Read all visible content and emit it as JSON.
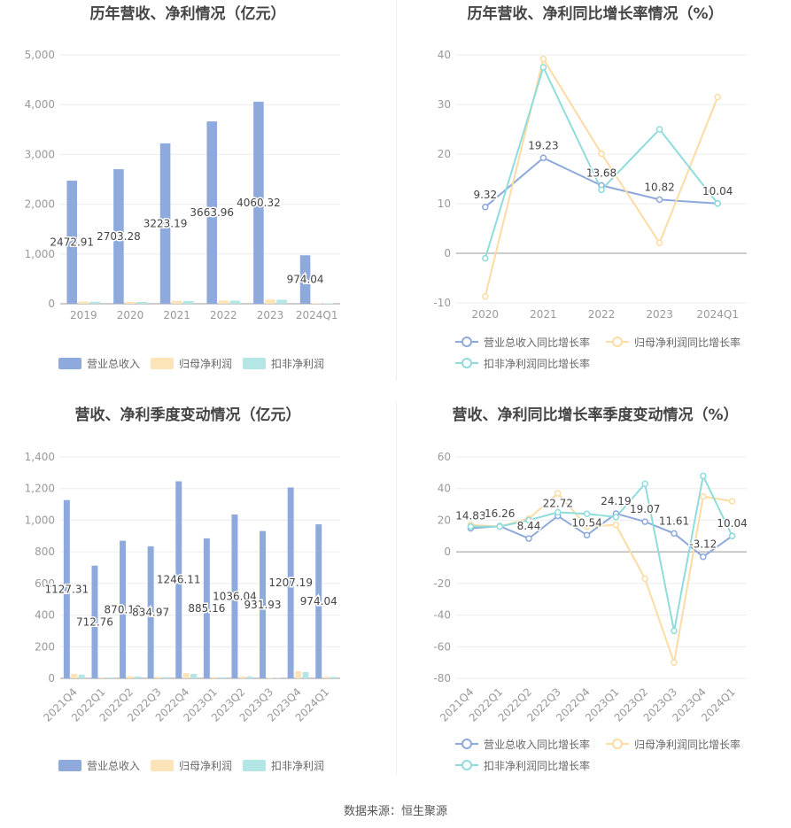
{
  "footer": {
    "source": "数据来源：恒生聚源"
  },
  "colors": {
    "revenue": "#8eaadc",
    "net": "#fde3b8",
    "deduct": "#b5e6e6",
    "revLine": "#8eaadc",
    "netLine": "#fddba4",
    "dedLine": "#8fdcdc"
  },
  "chart_data": [
    {
      "type": "bar",
      "title": "历年营收、净利情况（亿元）",
      "categories": [
        "2019",
        "2020",
        "2021",
        "2022",
        "2023",
        "2024Q1"
      ],
      "series": [
        {
          "name": "营业总收入",
          "values": [
            2472.91,
            2703.28,
            3223.19,
            3663.96,
            4060.32,
            974.04
          ],
          "labels": [
            "2472.91",
            "2703.28",
            "3223.19",
            "3663.96",
            "4060.32",
            "974.04"
          ]
        },
        {
          "name": "归母净利润",
          "values": [
            45,
            40,
            60,
            65,
            85,
            10
          ]
        },
        {
          "name": "扣非净利润",
          "values": [
            40,
            36,
            56,
            62,
            80,
            9
          ]
        }
      ],
      "ylim": [
        0,
        5000
      ],
      "yticks": [
        "0",
        "1,000",
        "2,000",
        "3,000",
        "4,000",
        "5,000"
      ],
      "legend": [
        "营业总收入",
        "归母净利润",
        "扣非净利润"
      ]
    },
    {
      "type": "line",
      "title": "历年营收、净利同比增长率情况（%）",
      "categories": [
        "2020",
        "2021",
        "2022",
        "2023",
        "2024Q1"
      ],
      "series": [
        {
          "name": "营业总收入同比增长率",
          "values": [
            9.32,
            19.23,
            13.68,
            10.82,
            10.04
          ],
          "labels": [
            "9.32",
            "19.23",
            "13.68",
            "10.82",
            "10.04"
          ]
        },
        {
          "name": "归母净利润同比增长率",
          "values": [
            -8.7,
            39.2,
            20.1,
            2.1,
            31.5
          ]
        },
        {
          "name": "扣非净利润同比增长率",
          "values": [
            -1.0,
            37.5,
            12.8,
            25.0,
            10.04
          ]
        }
      ],
      "ylim": [
        -10,
        40
      ],
      "yticks": [
        "-10",
        "0",
        "10",
        "20",
        "30",
        "40"
      ],
      "legend": [
        "营业总收入同比增长率",
        "归母净利润同比增长率",
        "扣非净利润同比增长率"
      ]
    },
    {
      "type": "bar",
      "title": "营收、净利季度变动情况（亿元）",
      "categories": [
        "2021Q4",
        "2022Q1",
        "2022Q2",
        "2022Q3",
        "2022Q4",
        "2023Q1",
        "2023Q2",
        "2023Q3",
        "2023Q4",
        "2024Q1"
      ],
      "series": [
        {
          "name": "营业总收入",
          "values": [
            1127.31,
            712.76,
            870.18,
            834.97,
            1246.11,
            885.16,
            1036.04,
            931.93,
            1207.19,
            974.04
          ],
          "labels": [
            "1127.31",
            "712.76",
            "870.18",
            "834.97",
            "1246.11",
            "885.16",
            "1036.04",
            "931.93",
            "1207.19",
            "974.04"
          ]
        },
        {
          "name": "归母净利润",
          "values": [
            28,
            6,
            14,
            9,
            33,
            8,
            12,
            3,
            45,
            10
          ]
        },
        {
          "name": "扣非净利润",
          "values": [
            24,
            5,
            12,
            8,
            28,
            7,
            11,
            2,
            40,
            9
          ]
        }
      ],
      "ylim": [
        0,
        1400
      ],
      "yticks": [
        "0",
        "200",
        "400",
        "600",
        "800",
        "1,000",
        "1,200",
        "1,400"
      ],
      "legend": [
        "营业总收入",
        "归母净利润",
        "扣非净利润"
      ]
    },
    {
      "type": "line",
      "title": "营收、净利同比增长率季度变动情况（%）",
      "categories": [
        "2021Q4",
        "2022Q1",
        "2022Q2",
        "2022Q3",
        "2022Q4",
        "2023Q1",
        "2023Q2",
        "2023Q3",
        "2023Q4",
        "2024Q1"
      ],
      "series": [
        {
          "name": "营业总收入同比增长率",
          "values": [
            14.83,
            16.26,
            8.44,
            22.72,
            10.54,
            24.19,
            19.07,
            11.61,
            -3.12,
            10.04
          ],
          "labels": [
            "14.83",
            "16.26",
            "8.44",
            "22.72",
            "10.54",
            "24.19",
            "19.07",
            "11.61",
            "-3.12",
            "10.04"
          ]
        },
        {
          "name": "归母净利润同比增长率",
          "values": [
            17,
            16,
            21,
            37,
            16,
            17,
            -17,
            -70,
            35,
            32
          ]
        },
        {
          "name": "扣非净利润同比增长率",
          "values": [
            16,
            16,
            20,
            25,
            24,
            22,
            43,
            -50,
            48,
            10
          ]
        }
      ],
      "ylim": [
        -80,
        60
      ],
      "yticks": [
        "-80",
        "-60",
        "-40",
        "-20",
        "0",
        "20",
        "40",
        "60"
      ],
      "legend": [
        "营业总收入同比增长率",
        "归母净利润同比增长率",
        "扣非净利润同比增长率"
      ]
    }
  ]
}
